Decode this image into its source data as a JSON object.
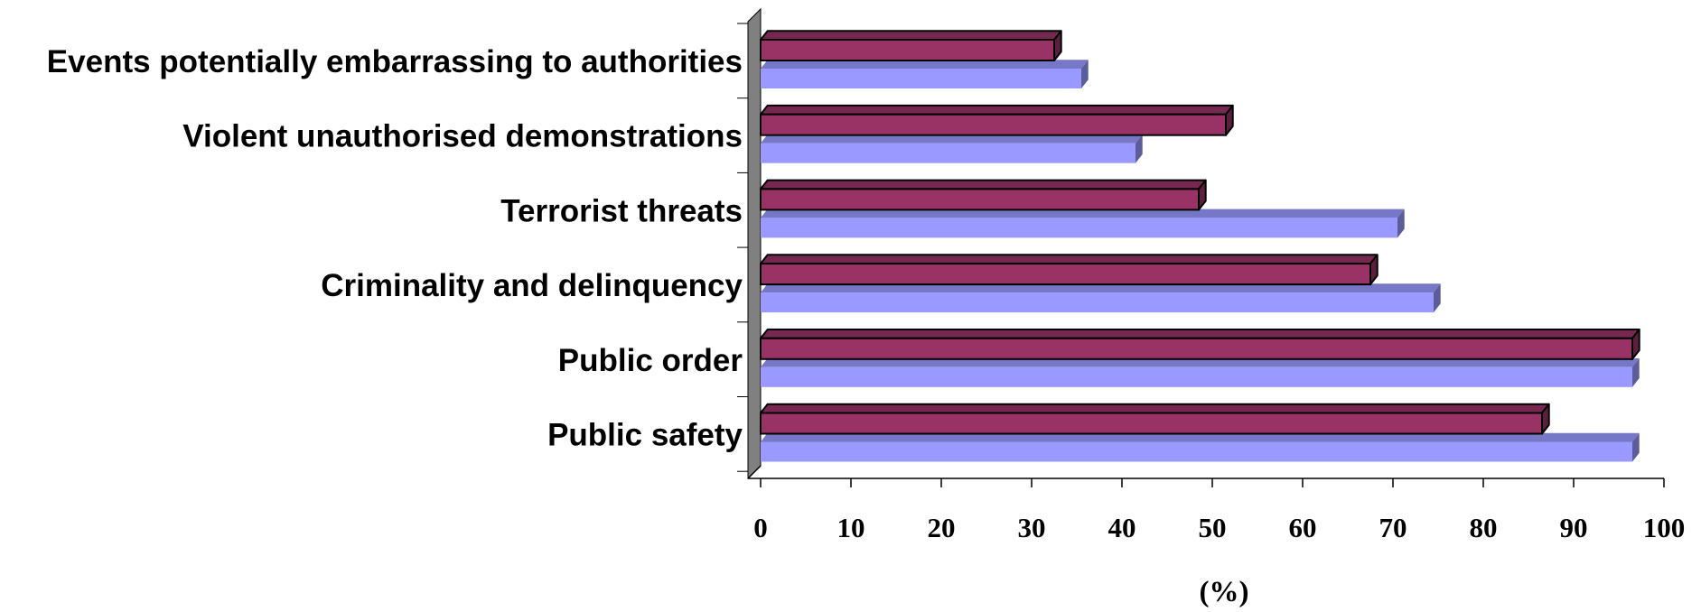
{
  "chart_data": {
    "type": "bar",
    "orientation": "horizontal",
    "three_d": true,
    "categories": [
      "Events potentially embarrassing to authorities",
      "Violent unauthorised demonstrations",
      "Terrorist threats",
      "Criminality and delinquency",
      "Public order",
      "Public safety"
    ],
    "series": [
      {
        "color": "#993366",
        "values": [
          32.5,
          51.5,
          48.5,
          67.5,
          96.5,
          86.5
        ]
      },
      {
        "color": "#9999FF",
        "values": [
          35.5,
          41.5,
          70.5,
          74.5,
          96.5,
          96.5
        ]
      }
    ],
    "x_ticks": [
      "0",
      "10",
      "20",
      "30",
      "40",
      "50",
      "60",
      "70",
      "80",
      "90",
      "100"
    ],
    "xlim": [
      0,
      100
    ],
    "xlabel": "(%)",
    "ylabel": "",
    "title": "",
    "legend": "none",
    "grid": false,
    "wall_color": "#808080"
  }
}
